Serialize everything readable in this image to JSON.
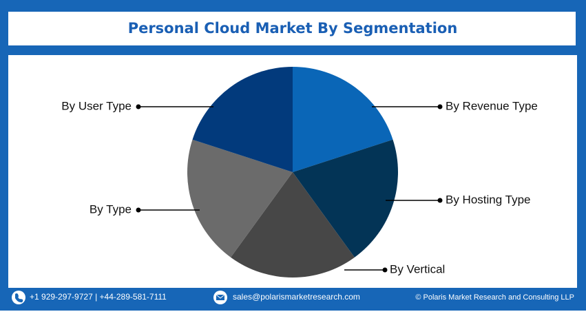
{
  "chart_data": {
    "type": "pie",
    "title": "Personal Cloud Market By Segmentation",
    "categories": [
      "By Revenue Type",
      "By Hosting Type",
      "By Vertical",
      "By Type",
      "By User Type"
    ],
    "values": [
      20,
      20,
      20,
      20,
      20
    ],
    "colors": [
      "#0a66b7",
      "#033456",
      "#474747",
      "#6b6b6b",
      "#023a7c"
    ]
  },
  "footer": {
    "phone": "+1 929-297-9727 | +44-289-581-7111",
    "email": "sales@polarismarketresearch.com",
    "copyright": "© Polaris Market Research and Consulting LLP"
  }
}
